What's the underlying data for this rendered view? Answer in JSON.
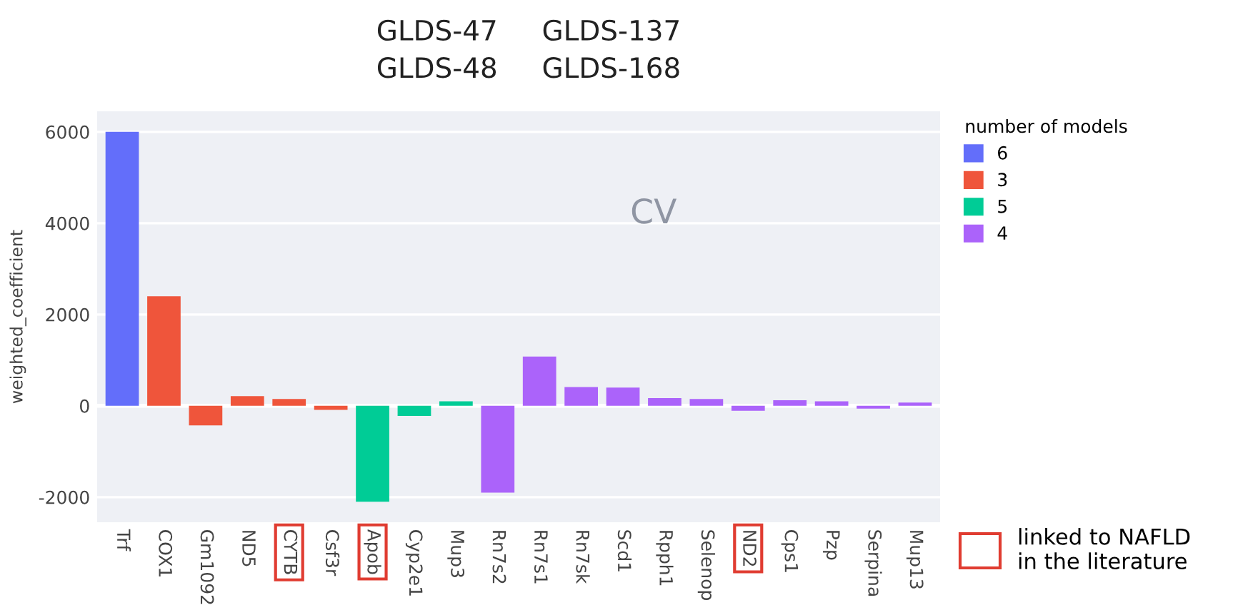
{
  "chart_data": {
    "type": "bar",
    "categories": [
      "Trf",
      "COX1",
      "Gm1092",
      "ND5",
      "CYTB",
      "Csf3r",
      "Apob",
      "Cyp2e1",
      "Mup3",
      "Rn7s2",
      "Rn7s1",
      "Rn7sk",
      "Scd1",
      "Rpph1",
      "Selenop",
      "ND2",
      "Cps1",
      "Pzp",
      "Serpina",
      "Mup13"
    ],
    "series": [
      {
        "name": "6",
        "color": "#636efa",
        "values": [
          6000,
          null,
          null,
          null,
          null,
          null,
          null,
          null,
          null,
          null,
          null,
          null,
          null,
          null,
          null,
          null,
          null,
          null,
          null,
          null
        ]
      },
      {
        "name": "3",
        "color": "#ef553b",
        "values": [
          null,
          2400,
          -430,
          210,
          150,
          -90,
          null,
          null,
          null,
          null,
          null,
          null,
          null,
          null,
          null,
          null,
          null,
          null,
          null,
          null
        ]
      },
      {
        "name": "5",
        "color": "#00cc96",
        "values": [
          null,
          null,
          null,
          null,
          null,
          null,
          -2100,
          -220,
          100,
          null,
          null,
          null,
          null,
          null,
          null,
          null,
          null,
          null,
          null,
          null
        ]
      },
      {
        "name": "4",
        "color": "#ab63fa",
        "values": [
          null,
          null,
          null,
          null,
          null,
          null,
          null,
          null,
          null,
          -1900,
          1080,
          410,
          400,
          170,
          150,
          -110,
          120,
          100,
          -60,
          70
        ]
      }
    ],
    "ylabel": "weighted_coefficient",
    "legend_title": "number of models",
    "legend": "top right",
    "ylim": [
      -2550,
      6450
    ],
    "yticks": [
      -2000,
      0,
      2000,
      4000,
      6000
    ],
    "grid": "y",
    "annotations": [
      "GLDS-47     GLDS-137\nGLDS-48     GLDS-168",
      "CV",
      "linked to NAFLD\nin the literature"
    ]
  }
}
